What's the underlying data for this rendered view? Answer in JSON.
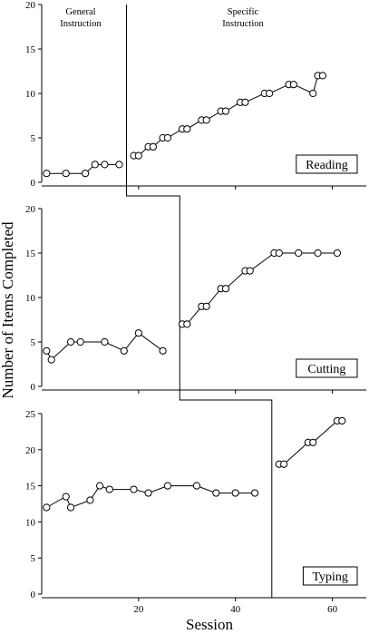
{
  "chart_data": {
    "type": "line",
    "xlabel": "Session",
    "ylabel": "Number of Items Completed",
    "xlim": [
      0,
      67
    ],
    "xticks": [
      20,
      40,
      60
    ],
    "phase_labels": {
      "baseline_line1": "General",
      "baseline_line2": "Instruction",
      "treatment_line1": "Specific",
      "treatment_line2": "Instruction"
    },
    "panels": [
      {
        "label": "Reading",
        "ylim": [
          0,
          20
        ],
        "yticks": [
          0,
          5,
          10,
          15,
          20
        ],
        "phase_change_after_session": 17,
        "baseline": [
          {
            "x": 1,
            "y": 1
          },
          {
            "x": 5,
            "y": 1
          },
          {
            "x": 9,
            "y": 1
          },
          {
            "x": 11,
            "y": 2
          },
          {
            "x": 13,
            "y": 2
          },
          {
            "x": 16,
            "y": 2
          }
        ],
        "treatment": [
          {
            "x": 19,
            "y": 3
          },
          {
            "x": 20,
            "y": 3
          },
          {
            "x": 22,
            "y": 4
          },
          {
            "x": 23,
            "y": 4
          },
          {
            "x": 25,
            "y": 5
          },
          {
            "x": 26,
            "y": 5
          },
          {
            "x": 29,
            "y": 6
          },
          {
            "x": 30,
            "y": 6
          },
          {
            "x": 33,
            "y": 7
          },
          {
            "x": 34,
            "y": 7
          },
          {
            "x": 37,
            "y": 8
          },
          {
            "x": 38,
            "y": 8
          },
          {
            "x": 41,
            "y": 9
          },
          {
            "x": 42,
            "y": 9
          },
          {
            "x": 46,
            "y": 10
          },
          {
            "x": 47,
            "y": 10
          },
          {
            "x": 51,
            "y": 11
          },
          {
            "x": 52,
            "y": 11
          },
          {
            "x": 56,
            "y": 10
          },
          {
            "x": 57,
            "y": 12
          },
          {
            "x": 58,
            "y": 12
          }
        ]
      },
      {
        "label": "Cutting",
        "ylim": [
          0,
          20
        ],
        "yticks": [
          0,
          5,
          10,
          15,
          20
        ],
        "phase_change_after_session": 28,
        "baseline": [
          {
            "x": 1,
            "y": 4
          },
          {
            "x": 2,
            "y": 3
          },
          {
            "x": 6,
            "y": 5
          },
          {
            "x": 8,
            "y": 5
          },
          {
            "x": 13,
            "y": 5
          },
          {
            "x": 17,
            "y": 4
          },
          {
            "x": 20,
            "y": 6
          },
          {
            "x": 25,
            "y": 4
          }
        ],
        "treatment": [
          {
            "x": 29,
            "y": 7
          },
          {
            "x": 30,
            "y": 7
          },
          {
            "x": 33,
            "y": 9
          },
          {
            "x": 34,
            "y": 9
          },
          {
            "x": 37,
            "y": 11
          },
          {
            "x": 38,
            "y": 11
          },
          {
            "x": 42,
            "y": 13
          },
          {
            "x": 43,
            "y": 13
          },
          {
            "x": 48,
            "y": 15
          },
          {
            "x": 49,
            "y": 15
          },
          {
            "x": 53,
            "y": 15
          },
          {
            "x": 57,
            "y": 15
          },
          {
            "x": 61,
            "y": 15
          }
        ]
      },
      {
        "label": "Typing",
        "ylim": [
          0,
          25
        ],
        "yticks": [
          0,
          5,
          10,
          15,
          20,
          25
        ],
        "phase_change_after_session": 47,
        "baseline": [
          {
            "x": 1,
            "y": 12
          },
          {
            "x": 5,
            "y": 13.5
          },
          {
            "x": 6,
            "y": 12
          },
          {
            "x": 10,
            "y": 13
          },
          {
            "x": 12,
            "y": 15
          },
          {
            "x": 14,
            "y": 14.5
          },
          {
            "x": 19,
            "y": 14.5
          },
          {
            "x": 22,
            "y": 14
          },
          {
            "x": 26,
            "y": 15
          },
          {
            "x": 32,
            "y": 15
          },
          {
            "x": 36,
            "y": 14
          },
          {
            "x": 40,
            "y": 14
          },
          {
            "x": 44,
            "y": 14
          }
        ],
        "treatment": [
          {
            "x": 49,
            "y": 18
          },
          {
            "x": 50,
            "y": 18
          },
          {
            "x": 55,
            "y": 21
          },
          {
            "x": 56,
            "y": 21
          },
          {
            "x": 61,
            "y": 24
          },
          {
            "x": 62,
            "y": 24
          }
        ]
      }
    ]
  }
}
